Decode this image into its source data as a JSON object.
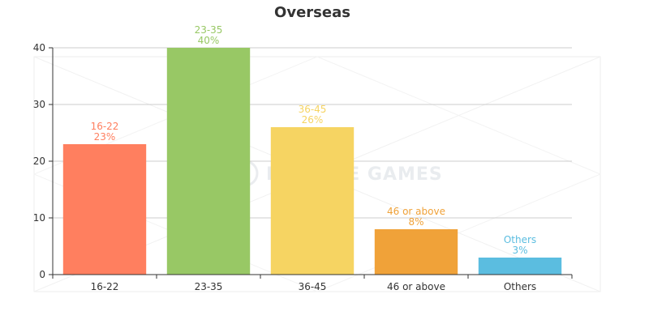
{
  "chart_data": {
    "type": "bar",
    "title": "Overseas",
    "categories": [
      "16-22",
      "23-35",
      "36-45",
      "46 or above",
      "Others"
    ],
    "values": [
      23,
      40,
      26,
      8,
      3
    ],
    "percent_labels": [
      "23%",
      "40%",
      "26%",
      "8%",
      "3%"
    ],
    "colors": [
      "#ff7f5f",
      "#98c865",
      "#f6d462",
      "#f0a239",
      "#5bbde0"
    ],
    "ylim": [
      0,
      40
    ],
    "yticks": [
      0,
      10,
      20,
      30,
      40
    ],
    "grid": true,
    "legend": "none"
  },
  "watermark": "MIRACLE GAMES"
}
